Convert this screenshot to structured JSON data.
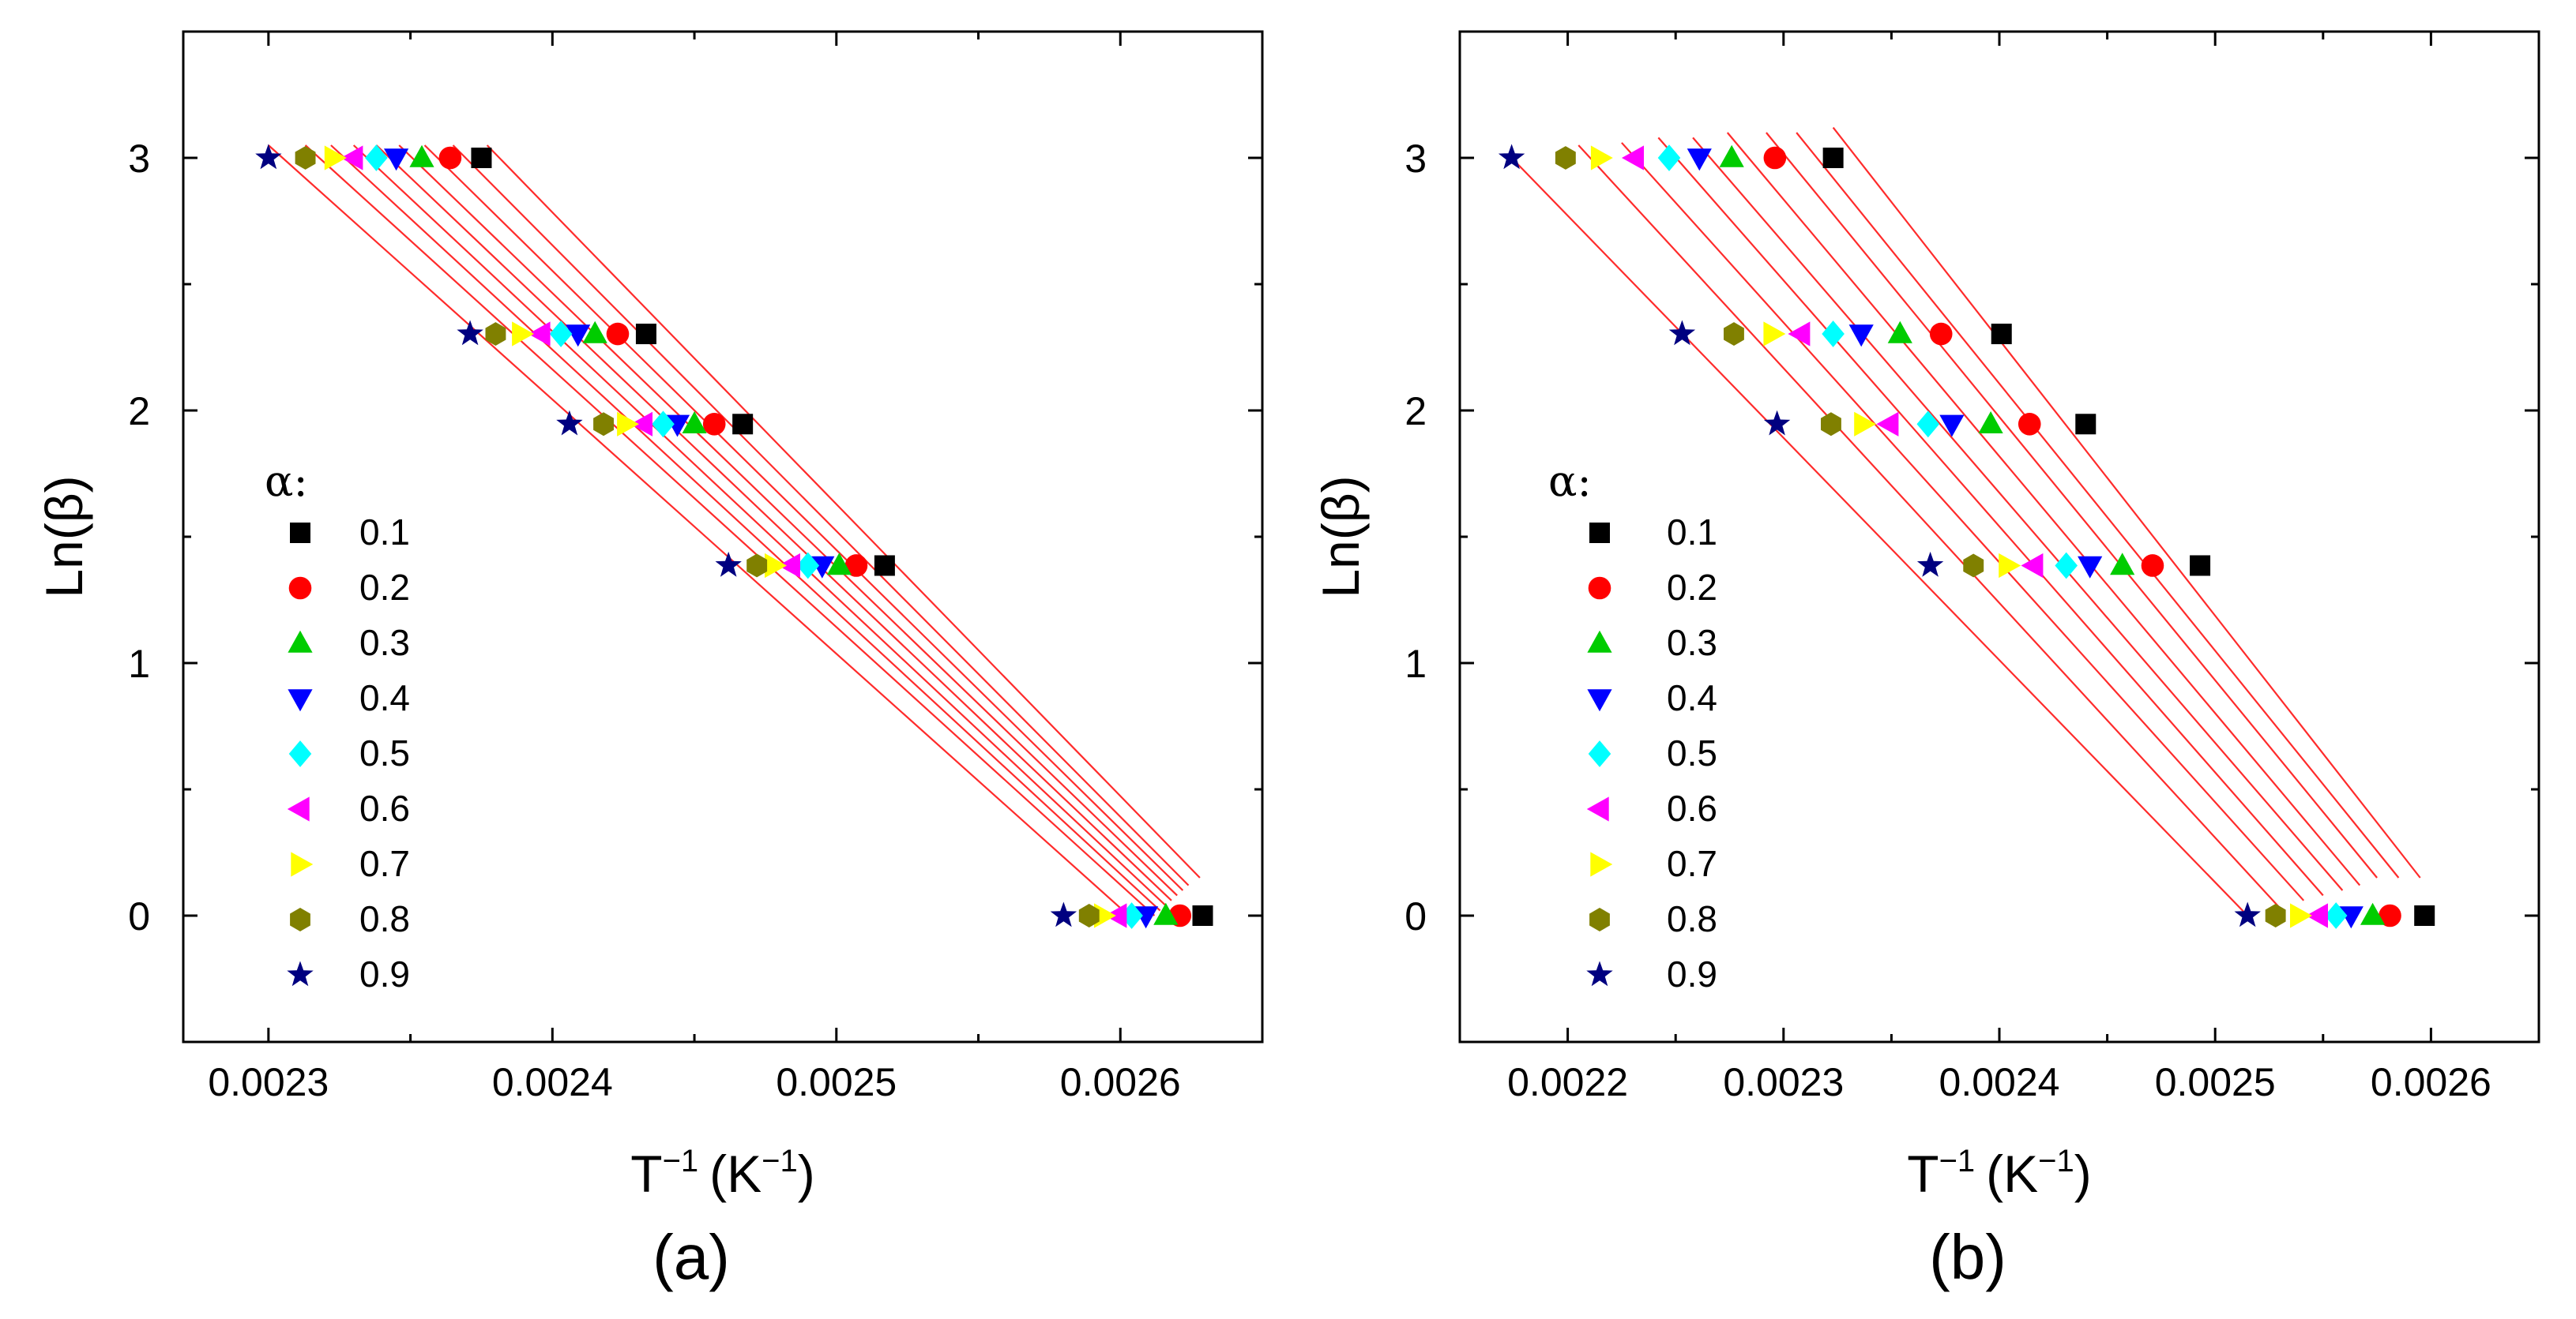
{
  "colors": {
    "fit_line": "#ff2b2b",
    "axis": "#000000",
    "0.1": "#000000",
    "0.2": "#ff0000",
    "0.3": "#00cc00",
    "0.4": "#0000ff",
    "0.5": "#00ffff",
    "0.6": "#ff00ff",
    "0.7": "#ffff00",
    "0.8": "#808000",
    "0.9": "#000080"
  },
  "chart_data": [
    {
      "type": "scatter",
      "panel_label": "(a)",
      "xlabel": "T",
      "xlabel_sup1": "−1",
      "xlabel_units": "(K",
      "xlabel_sup2": "−1",
      "xlabel_close": ")",
      "ylabel": "Ln(β)",
      "xlim": [
        0.00227,
        0.00265
      ],
      "ylim": [
        -0.5,
        3.5
      ],
      "x_ticks": [
        0.0023,
        0.0024,
        0.0025,
        0.0026
      ],
      "x_tick_labels": [
        "0.0023",
        "0.0024",
        "0.0025",
        "0.0026"
      ],
      "y_ticks": [
        0,
        1,
        2,
        3
      ],
      "y_tick_labels": [
        "0",
        "1",
        "2",
        "3"
      ],
      "legend_title": "α:",
      "y_levels": [
        0,
        1.386,
        1.946,
        2.303,
        3
      ],
      "series": [
        {
          "name": "0.1",
          "marker": "square",
          "x": [
            0.002629,
            0.002517,
            0.002467,
            0.002433,
            0.002375
          ]
        },
        {
          "name": "0.2",
          "marker": "circle",
          "x": [
            0.002621,
            0.002507,
            0.002457,
            0.002423,
            0.002364
          ]
        },
        {
          "name": "0.3",
          "marker": "triangle-up",
          "x": [
            0.002616,
            0.002501,
            0.00245,
            0.002415,
            0.002354
          ]
        },
        {
          "name": "0.4",
          "marker": "triangle-down",
          "x": [
            0.002609,
            0.002495,
            0.002444,
            0.002409,
            0.002345
          ]
        },
        {
          "name": "0.5",
          "marker": "diamond",
          "x": [
            0.002604,
            0.00249,
            0.002439,
            0.002403,
            0.002338
          ]
        },
        {
          "name": "0.6",
          "marker": "triangle-left",
          "x": [
            0.002599,
            0.002484,
            0.002432,
            0.002396,
            0.00233
          ]
        },
        {
          "name": "0.7",
          "marker": "triangle-right",
          "x": [
            0.002594,
            0.002478,
            0.002426,
            0.002389,
            0.002323
          ]
        },
        {
          "name": "0.8",
          "marker": "hexagon",
          "x": [
            0.002589,
            0.002472,
            0.002418,
            0.00238,
            0.002313
          ]
        },
        {
          "name": "0.9",
          "marker": "star",
          "x": [
            0.00258,
            0.002462,
            0.002406,
            0.002371,
            0.0023
          ]
        }
      ],
      "fit_lines": [
        {
          "x": [
            0.002377,
            0.002628
          ],
          "y": [
            3.05,
            0.15
          ]
        },
        {
          "x": [
            0.002365,
            0.002624
          ],
          "y": [
            3.05,
            0.12
          ]
        },
        {
          "x": [
            0.002355,
            0.002622
          ],
          "y": [
            3.05,
            0.1
          ]
        },
        {
          "x": [
            0.002346,
            0.00262
          ],
          "y": [
            3.05,
            0.08
          ]
        },
        {
          "x": [
            0.002338,
            0.002618
          ],
          "y": [
            3.05,
            0.06
          ]
        },
        {
          "x": [
            0.00233,
            0.002616
          ],
          "y": [
            3.05,
            0.04
          ]
        },
        {
          "x": [
            0.002322,
            0.002614
          ],
          "y": [
            3.05,
            0.02
          ]
        },
        {
          "x": [
            0.002313,
            0.002612
          ],
          "y": [
            3.05,
            0.0
          ]
        },
        {
          "x": [
            0.0023,
            0.002605
          ],
          "y": [
            3.05,
            -0.02
          ]
        }
      ]
    },
    {
      "type": "scatter",
      "panel_label": "(b)",
      "xlabel": "T",
      "xlabel_sup1": "−1",
      "xlabel_units": "(K",
      "xlabel_sup2": "−1",
      "xlabel_close": ")",
      "ylabel": "Ln(β)",
      "xlim": [
        0.00215,
        0.00265
      ],
      "ylim": [
        -0.5,
        3.5
      ],
      "x_ticks": [
        0.0022,
        0.0023,
        0.0024,
        0.0025,
        0.0026
      ],
      "x_tick_labels": [
        "0.0022",
        "0.0023",
        "0.0024",
        "0.0025",
        "0.0026"
      ],
      "y_ticks": [
        0,
        1,
        2,
        3
      ],
      "y_tick_labels": [
        "0",
        "1",
        "2",
        "3"
      ],
      "legend_title": "α:",
      "y_levels": [
        0,
        1.386,
        1.946,
        2.303,
        3
      ],
      "series": [
        {
          "name": "0.1",
          "marker": "square",
          "x": [
            0.002597,
            0.002493,
            0.00244,
            0.002401,
            0.002323
          ]
        },
        {
          "name": "0.2",
          "marker": "circle",
          "x": [
            0.002581,
            0.002471,
            0.002414,
            0.002373,
            0.002296
          ]
        },
        {
          "name": "0.3",
          "marker": "triangle-up",
          "x": [
            0.002573,
            0.002457,
            0.002396,
            0.002354,
            0.002276
          ]
        },
        {
          "name": "0.4",
          "marker": "triangle-down",
          "x": [
            0.002563,
            0.002442,
            0.002378,
            0.002336,
            0.002261
          ]
        },
        {
          "name": "0.5",
          "marker": "diamond",
          "x": [
            0.002556,
            0.002431,
            0.002367,
            0.002323,
            0.002247
          ]
        },
        {
          "name": "0.6",
          "marker": "triangle-left",
          "x": [
            0.002548,
            0.002416,
            0.002349,
            0.002308,
            0.002231
          ]
        },
        {
          "name": "0.7",
          "marker": "triangle-right",
          "x": [
            0.002539,
            0.002404,
            0.002337,
            0.002295,
            0.002215
          ]
        },
        {
          "name": "0.8",
          "marker": "hexagon",
          "x": [
            0.002528,
            0.002388,
            0.002322,
            0.002277,
            0.002199
          ]
        },
        {
          "name": "0.9",
          "marker": "star",
          "x": [
            0.002515,
            0.002368,
            0.002297,
            0.002253,
            0.002174
          ]
        }
      ],
      "fit_lines": [
        {
          "x": [
            0.002323,
            0.002595
          ],
          "y": [
            3.12,
            0.15
          ]
        },
        {
          "x": [
            0.002306,
            0.002585
          ],
          "y": [
            3.1,
            0.15
          ]
        },
        {
          "x": [
            0.002292,
            0.002575
          ],
          "y": [
            3.1,
            0.15
          ]
        },
        {
          "x": [
            0.002274,
            0.002567
          ],
          "y": [
            3.1,
            0.12
          ]
        },
        {
          "x": [
            0.002258,
            0.002559
          ],
          "y": [
            3.08,
            0.1
          ]
        },
        {
          "x": [
            0.002242,
            0.00255
          ],
          "y": [
            3.08,
            0.08
          ]
        },
        {
          "x": [
            0.002225,
            0.002541
          ],
          "y": [
            3.06,
            0.06
          ]
        },
        {
          "x": [
            0.002205,
            0.00253
          ],
          "y": [
            3.05,
            0.03
          ]
        },
        {
          "x": [
            0.002174,
            0.002515
          ],
          "y": [
            3.0,
            0.0
          ]
        }
      ]
    }
  ]
}
